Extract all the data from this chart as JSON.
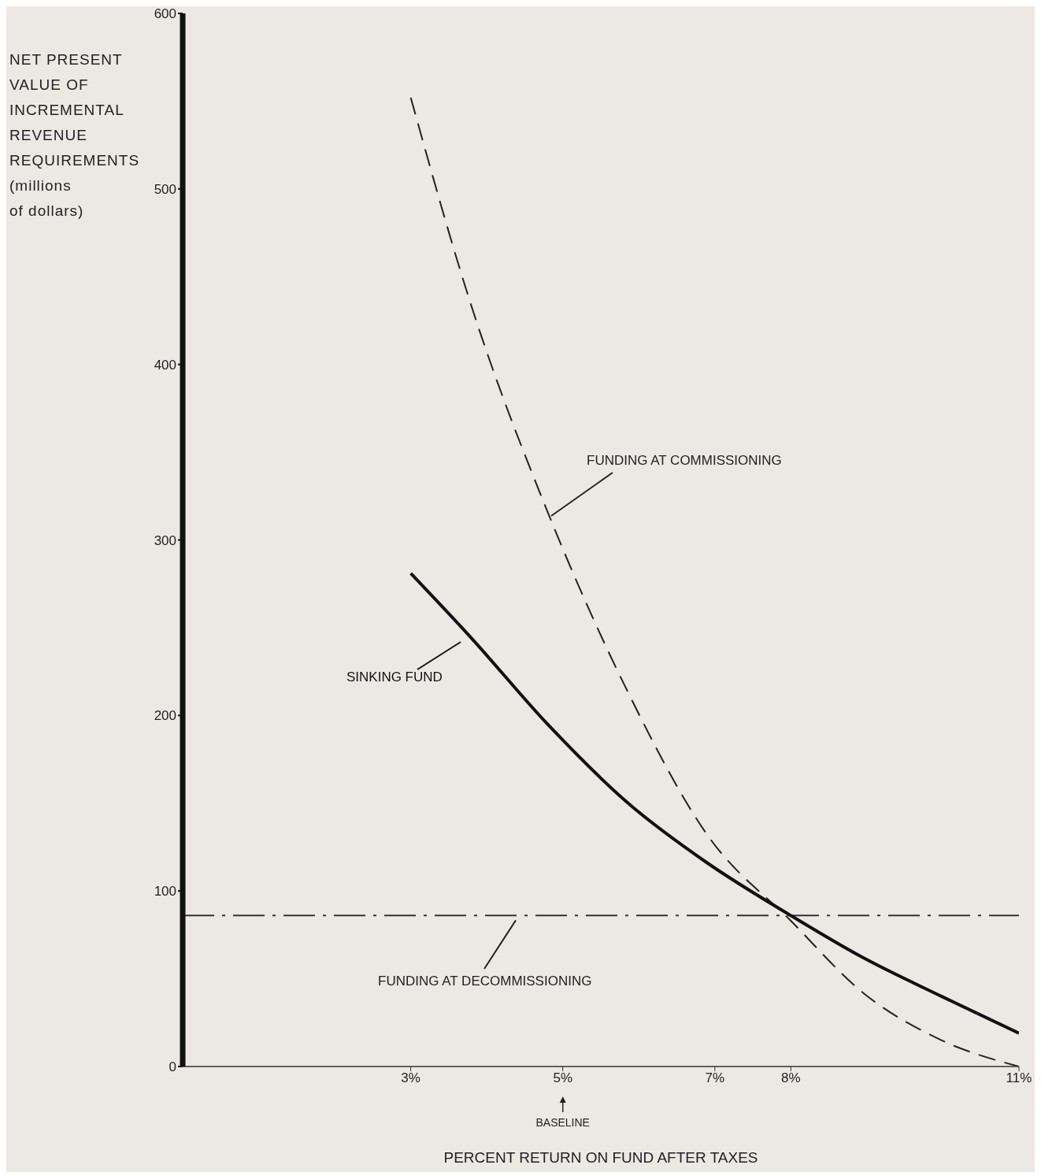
{
  "chart_data": {
    "type": "line",
    "xlabel": "PERCENT RETURN ON FUND AFTER TAXES",
    "ylabel": "NET PRESENT\nVALUE OF\nINCREMENTAL\nREVENUE\nREQUIREMENTS\n(millions\nof dollars)",
    "xlim": [
      0,
      11
    ],
    "xticks": [
      {
        "value": 3,
        "label": "3%"
      },
      {
        "value": 5,
        "label": "5%"
      },
      {
        "value": 7,
        "label": "7%"
      },
      {
        "value": 8,
        "label": "8%"
      },
      {
        "value": 11,
        "label": "11%"
      }
    ],
    "ylim": [
      0,
      600
    ],
    "yticks": [
      0,
      100,
      200,
      300,
      400,
      500,
      600
    ],
    "marker": "none",
    "series": [
      {
        "name": "FUNDING AT COMMISSIONING",
        "color": "#222222",
        "line_style": "dashed",
        "x": [
          3,
          3.8,
          4.8,
          5.86,
          6.9,
          8,
          8.95,
          9.98,
          11
        ],
        "values": [
          552,
          433,
          316,
          213,
          132,
          83,
          42,
          15,
          0
        ]
      },
      {
        "name": "SINKING FUND",
        "color": "#111111",
        "line_style": "solid",
        "x": [
          3,
          3.8,
          4.8,
          5.86,
          6.9,
          8,
          8.95,
          9.98,
          11
        ],
        "values": [
          281,
          244,
          195,
          150,
          116,
          86,
          62,
          40,
          19
        ]
      }
    ],
    "ref_lines": [
      {
        "axis": "y",
        "value": 86,
        "label": "FUNDING AT DECOMMISSIONING",
        "color": "#333333",
        "line_style": "dashed"
      }
    ],
    "annotations": [
      "BASELINE"
    ]
  }
}
